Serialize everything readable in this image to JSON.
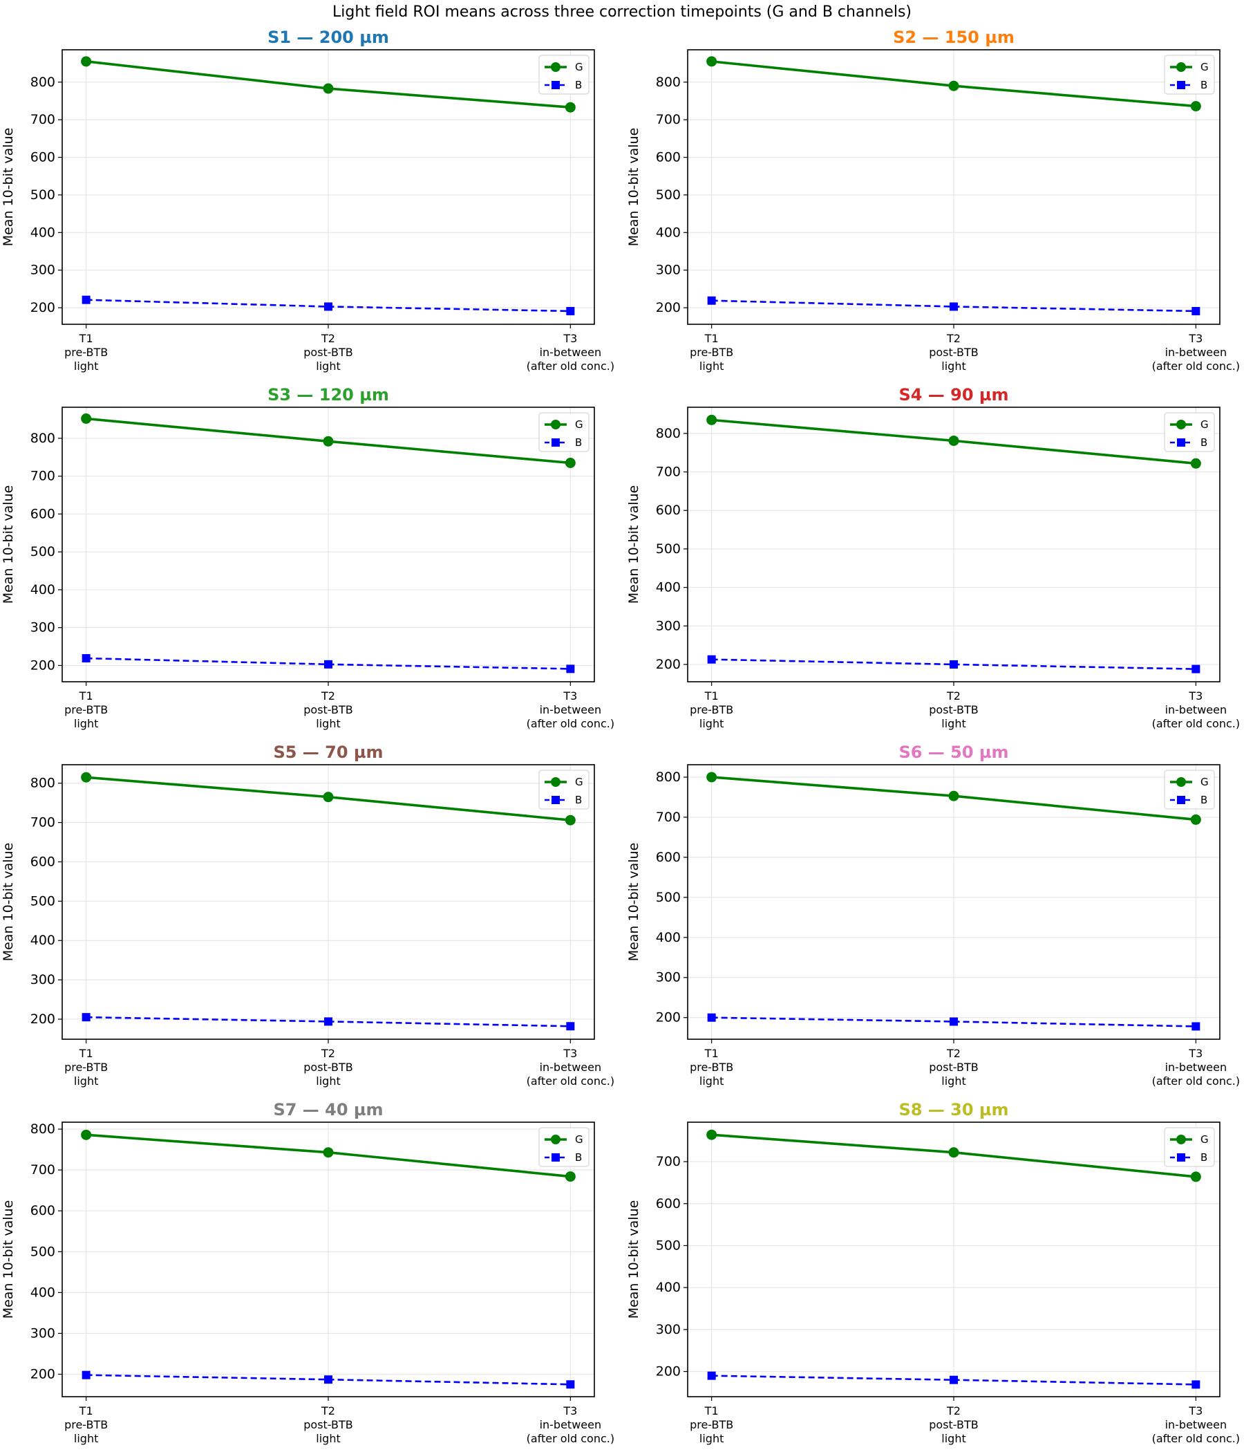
{
  "suptitle": "Light field ROI means across three correction timepoints (G and B channels)",
  "chart_data": [
    {
      "type": "line",
      "title": "S1 — 200 µm",
      "title_color": "#1f77b4",
      "ylabel": "Mean 10-bit value",
      "x_tick_labels": [
        [
          "T1",
          "pre-BTB",
          "light"
        ],
        [
          "T2",
          "post-BTB",
          "light"
        ],
        [
          "T3",
          "in-between",
          "(after old conc.)"
        ]
      ],
      "ylim": [
        156,
        886
      ],
      "yticks": [
        200,
        300,
        400,
        500,
        600,
        700,
        800
      ],
      "grid": true,
      "legend_position": "upper right",
      "series": [
        {
          "name": "G",
          "color": "#008000",
          "style": "solid",
          "marker": "circle",
          "values": [
            855,
            783,
            733
          ]
        },
        {
          "name": "B",
          "color": "#0000ff",
          "style": "dashed",
          "marker": "square",
          "values": [
            221,
            203,
            191
          ]
        }
      ]
    },
    {
      "type": "line",
      "title": "S2 — 150 µm",
      "title_color": "#ff7f0e",
      "ylabel": "Mean 10-bit value",
      "x_tick_labels": [
        [
          "T1",
          "pre-BTB",
          "light"
        ],
        [
          "T2",
          "post-BTB",
          "light"
        ],
        [
          "T3",
          "in-between",
          "(after old conc.)"
        ]
      ],
      "ylim": [
        156,
        886
      ],
      "yticks": [
        200,
        300,
        400,
        500,
        600,
        700,
        800
      ],
      "grid": true,
      "legend_position": "upper right",
      "series": [
        {
          "name": "G",
          "color": "#008000",
          "style": "solid",
          "marker": "circle",
          "values": [
            855,
            790,
            736
          ]
        },
        {
          "name": "B",
          "color": "#0000ff",
          "style": "dashed",
          "marker": "square",
          "values": [
            219,
            203,
            191
          ]
        }
      ]
    },
    {
      "type": "line",
      "title": "S3 — 120 µm",
      "title_color": "#2ca02c",
      "ylabel": "Mean 10-bit value",
      "x_tick_labels": [
        [
          "T1",
          "pre-BTB",
          "light"
        ],
        [
          "T2",
          "post-BTB",
          "light"
        ],
        [
          "T3",
          "in-between",
          "(after old conc.)"
        ]
      ],
      "ylim": [
        157,
        882
      ],
      "yticks": [
        200,
        300,
        400,
        500,
        600,
        700,
        800
      ],
      "grid": true,
      "legend_position": "upper right",
      "series": [
        {
          "name": "G",
          "color": "#008000",
          "style": "solid",
          "marker": "circle",
          "values": [
            852,
            792,
            735
          ]
        },
        {
          "name": "B",
          "color": "#0000ff",
          "style": "dashed",
          "marker": "square",
          "values": [
            219,
            203,
            191
          ]
        }
      ]
    },
    {
      "type": "line",
      "title": "S4 — 90 µm",
      "title_color": "#d62728",
      "ylabel": "Mean 10-bit value",
      "x_tick_labels": [
        [
          "T1",
          "pre-BTB",
          "light"
        ],
        [
          "T2",
          "post-BTB",
          "light"
        ],
        [
          "T3",
          "in-between",
          "(after old conc.)"
        ]
      ],
      "ylim": [
        155,
        868
      ],
      "yticks": [
        200,
        300,
        400,
        500,
        600,
        700,
        800
      ],
      "grid": true,
      "legend_position": "upper right",
      "series": [
        {
          "name": "G",
          "color": "#008000",
          "style": "solid",
          "marker": "circle",
          "values": [
            835,
            781,
            722
          ]
        },
        {
          "name": "B",
          "color": "#0000ff",
          "style": "dashed",
          "marker": "square",
          "values": [
            213,
            200,
            188
          ]
        }
      ]
    },
    {
      "type": "line",
      "title": "S5 — 70 µm",
      "title_color": "#8c564b",
      "ylabel": "Mean 10-bit value",
      "x_tick_labels": [
        [
          "T1",
          "pre-BTB",
          "light"
        ],
        [
          "T2",
          "post-BTB",
          "light"
        ],
        [
          "T3",
          "in-between",
          "(after old conc.)"
        ]
      ],
      "ylim": [
        149,
        847
      ],
      "yticks": [
        200,
        300,
        400,
        500,
        600,
        700,
        800
      ],
      "grid": true,
      "legend_position": "upper right",
      "series": [
        {
          "name": "G",
          "color": "#008000",
          "style": "solid",
          "marker": "circle",
          "values": [
            815,
            765,
            706
          ]
        },
        {
          "name": "B",
          "color": "#0000ff",
          "style": "dashed",
          "marker": "square",
          "values": [
            205,
            194,
            182
          ]
        }
      ]
    },
    {
      "type": "line",
      "title": "S6 — 50 µm",
      "title_color": "#e377c2",
      "ylabel": "Mean 10-bit value",
      "x_tick_labels": [
        [
          "T1",
          "pre-BTB",
          "light"
        ],
        [
          "T2",
          "post-BTB",
          "light"
        ],
        [
          "T3",
          "in-between",
          "(after old conc.)"
        ]
      ],
      "ylim": [
        146,
        831
      ],
      "yticks": [
        200,
        300,
        400,
        500,
        600,
        700,
        800
      ],
      "grid": true,
      "legend_position": "upper right",
      "series": [
        {
          "name": "G",
          "color": "#008000",
          "style": "solid",
          "marker": "circle",
          "values": [
            800,
            753,
            694
          ]
        },
        {
          "name": "B",
          "color": "#0000ff",
          "style": "dashed",
          "marker": "square",
          "values": [
            200,
            190,
            178
          ]
        }
      ]
    },
    {
      "type": "line",
      "title": "S7 — 40 µm",
      "title_color": "#7f7f7f",
      "ylabel": "Mean 10-bit value",
      "x_tick_labels": [
        [
          "T1",
          "pre-BTB",
          "light"
        ],
        [
          "T2",
          "post-BTB",
          "light"
        ],
        [
          "T3",
          "in-between",
          "(after old conc.)"
        ]
      ],
      "ylim": [
        145,
        817
      ],
      "yticks": [
        200,
        300,
        400,
        500,
        600,
        700,
        800
      ],
      "grid": true,
      "legend_position": "upper right",
      "series": [
        {
          "name": "G",
          "color": "#008000",
          "style": "solid",
          "marker": "circle",
          "values": [
            786,
            743,
            684
          ]
        },
        {
          "name": "B",
          "color": "#0000ff",
          "style": "dashed",
          "marker": "square",
          "values": [
            198,
            187,
            175
          ]
        }
      ]
    },
    {
      "type": "line",
      "title": "S8 — 30 µm",
      "title_color": "#bcbd22",
      "ylabel": "Mean 10-bit value",
      "x_tick_labels": [
        [
          "T1",
          "pre-BTB",
          "light"
        ],
        [
          "T2",
          "post-BTB",
          "light"
        ],
        [
          "T3",
          "in-between",
          "(after old conc.)"
        ]
      ],
      "ylim": [
        140,
        794
      ],
      "yticks": [
        200,
        300,
        400,
        500,
        600,
        700
      ],
      "grid": true,
      "legend_position": "upper right",
      "series": [
        {
          "name": "G",
          "color": "#008000",
          "style": "solid",
          "marker": "circle",
          "values": [
            764,
            722,
            664
          ]
        },
        {
          "name": "B",
          "color": "#0000ff",
          "style": "dashed",
          "marker": "square",
          "values": [
            190,
            180,
            169
          ]
        }
      ]
    }
  ]
}
